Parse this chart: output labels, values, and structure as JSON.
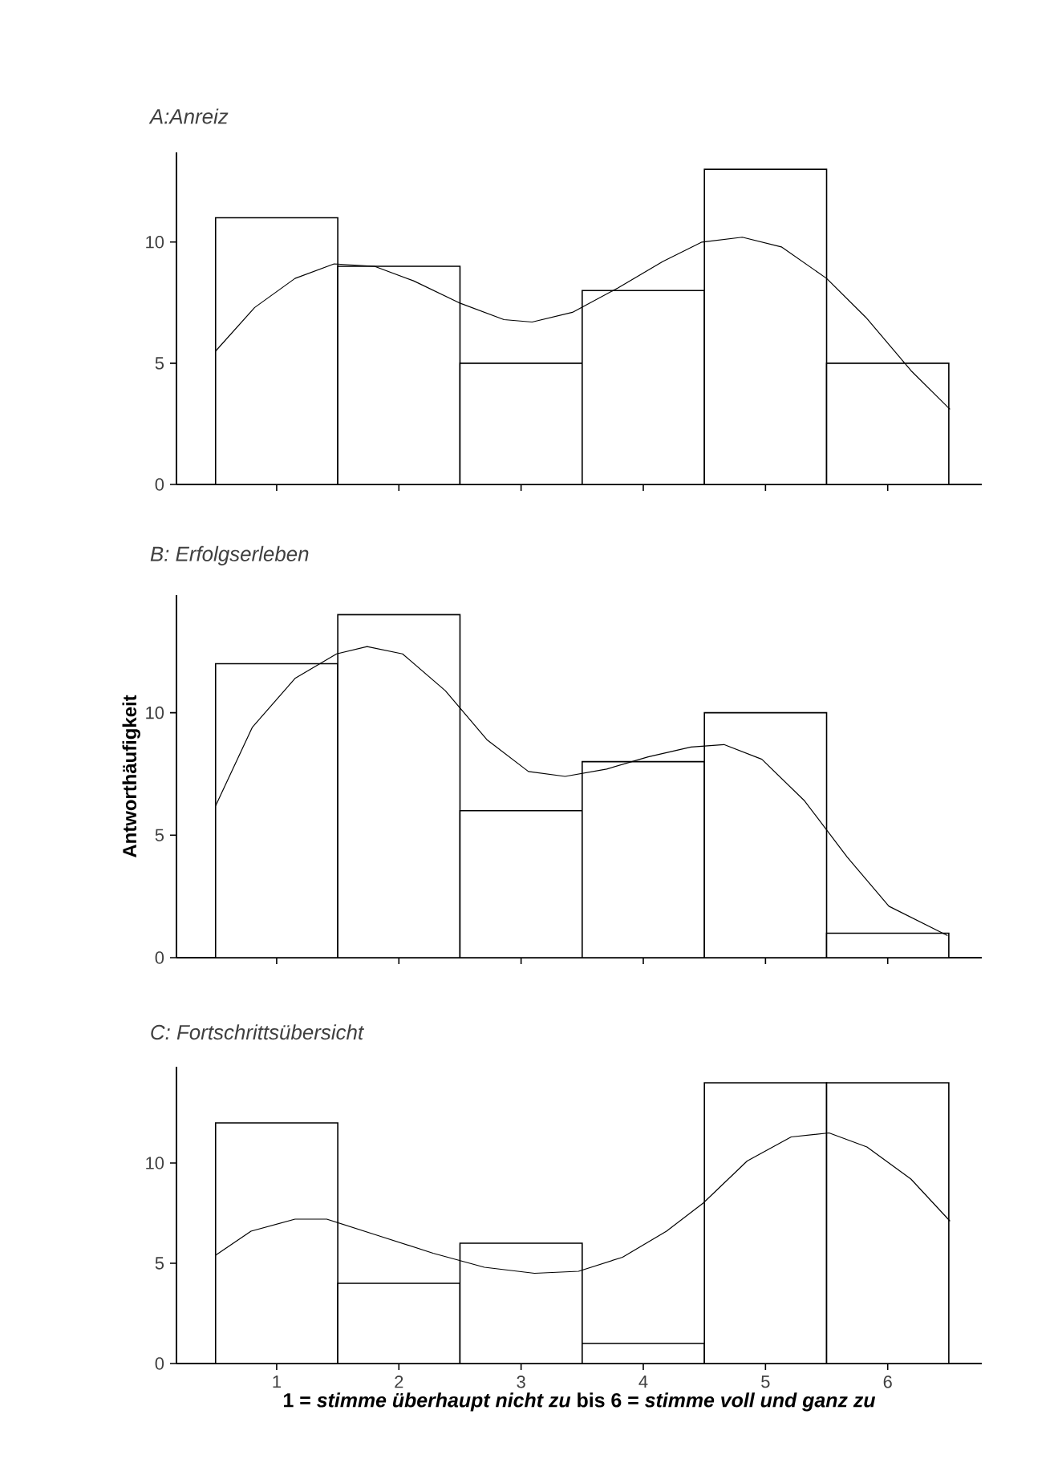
{
  "chart_data": [
    {
      "type": "histogram",
      "title": "A:Anreiz",
      "bins": [
        0.5,
        1.5,
        2.5,
        3.5,
        4.5,
        5.5,
        6.5
      ],
      "xlim": [
        0.18,
        6.77
      ],
      "ylim": [
        0,
        13.7
      ],
      "xticks": [
        1,
        2,
        3,
        4,
        5,
        6
      ],
      "yticks": [
        0,
        5,
        10
      ],
      "tick_labels": "y",
      "series": [
        {
          "values": [
            11,
            9,
            5,
            8,
            13,
            5
          ],
          "color": "#ffffff"
        },
        {
          "type": "line",
          "color": "#000000",
          "x": [
            0.5,
            0.82,
            1.15,
            1.47,
            1.8,
            2.12,
            2.49,
            2.86,
            3.09,
            3.42,
            3.79,
            4.16,
            4.48,
            4.81,
            5.13,
            5.5,
            5.82,
            6.19,
            6.51
          ],
          "values": [
            5.5,
            7.3,
            8.5,
            9.1,
            9.0,
            8.4,
            7.5,
            6.8,
            6.7,
            7.1,
            8.1,
            9.2,
            10.0,
            10.2,
            9.8,
            8.5,
            6.9,
            4.7,
            3.1
          ]
        }
      ]
    },
    {
      "type": "histogram",
      "title": "B: Erfolgserleben",
      "ylabel": "Antworthäufigkeit",
      "bins": [
        0.5,
        1.5,
        2.5,
        3.5,
        4.5,
        5.5,
        6.5
      ],
      "xlim": [
        0.18,
        6.77
      ],
      "ylim": [
        0,
        14.8
      ],
      "xticks": [
        1,
        2,
        3,
        4,
        5,
        6
      ],
      "yticks": [
        0,
        5,
        10
      ],
      "tick_labels": "y",
      "series": [
        {
          "values": [
            12,
            14,
            6,
            8,
            10,
            1
          ],
          "color": "#ffffff"
        },
        {
          "type": "line",
          "color": "#000000",
          "x": [
            0.5,
            0.8,
            1.15,
            1.49,
            1.74,
            2.03,
            2.38,
            2.72,
            3.06,
            3.36,
            3.7,
            4.04,
            4.39,
            4.66,
            4.97,
            5.32,
            5.67,
            6.01,
            6.49
          ],
          "values": [
            6.2,
            9.4,
            11.4,
            12.4,
            12.7,
            12.4,
            10.9,
            8.9,
            7.6,
            7.4,
            7.7,
            8.2,
            8.6,
            8.7,
            8.1,
            6.4,
            4.1,
            2.1,
            0.9
          ]
        }
      ]
    },
    {
      "type": "histogram",
      "title": "C: Fortschrittsübersicht",
      "xlabel": "1 = *stimme überhaupt nicht zu*  bis  6 = *stimme voll und ganz zu*",
      "bins": [
        0.5,
        1.5,
        2.5,
        3.5,
        4.5,
        5.5,
        6.5
      ],
      "xlim": [
        0.18,
        6.77
      ],
      "ylim": [
        0,
        14.8
      ],
      "xticks": [
        1,
        2,
        3,
        4,
        5,
        6
      ],
      "yticks": [
        0,
        5,
        10
      ],
      "series": [
        {
          "values": [
            12,
            4,
            6,
            1,
            14,
            14
          ],
          "color": "#ffffff"
        },
        {
          "type": "line",
          "color": "#000000",
          "x": [
            0.5,
            0.79,
            1.15,
            1.41,
            1.82,
            2.28,
            2.7,
            3.11,
            3.47,
            3.83,
            4.19,
            4.49,
            4.85,
            5.21,
            5.52,
            5.83,
            6.19,
            6.51
          ],
          "values": [
            5.4,
            6.6,
            7.2,
            7.2,
            6.4,
            5.5,
            4.8,
            4.5,
            4.6,
            5.3,
            6.6,
            8.0,
            10.1,
            11.3,
            11.5,
            10.8,
            9.2,
            7.1
          ]
        }
      ]
    }
  ]
}
